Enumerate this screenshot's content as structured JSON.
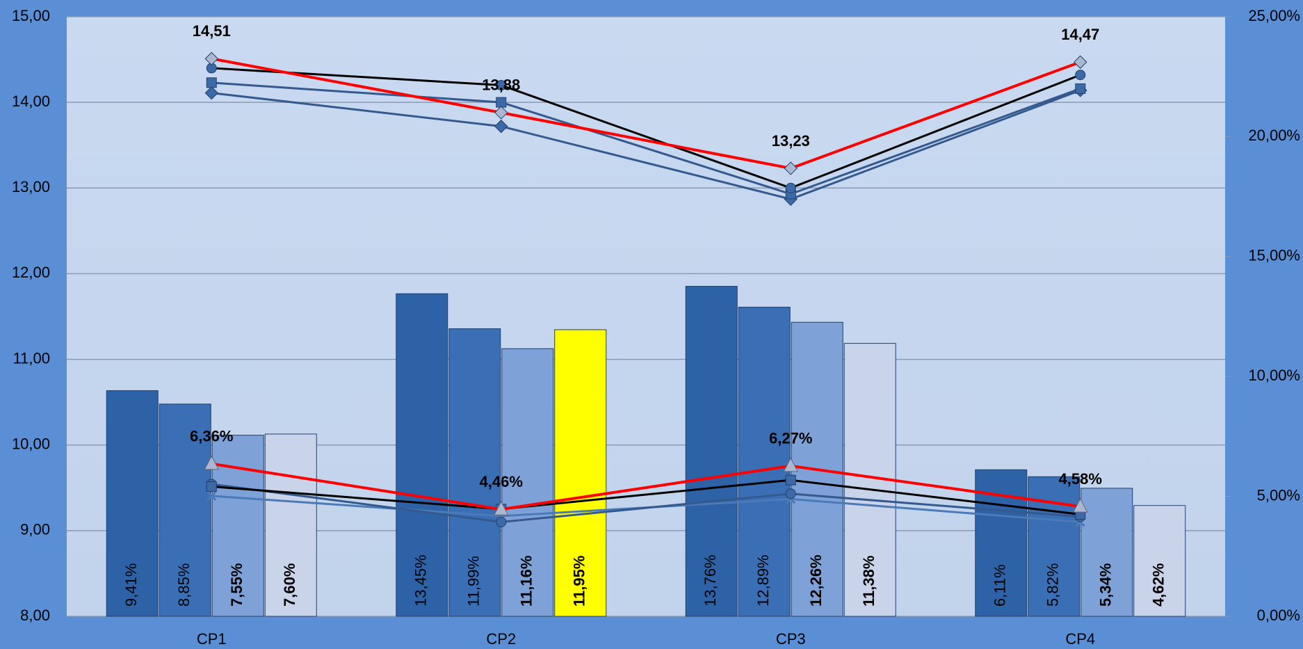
{
  "chart_data": {
    "type": "combo",
    "categories": [
      "CP1",
      "CP2",
      "CP3",
      "CP4"
    ],
    "ylim": [
      8,
      15
    ],
    "yticks": [
      {
        "value": 8,
        "label": "8,00"
      },
      {
        "value": 9,
        "label": "9,00"
      },
      {
        "value": 10,
        "label": "10,00"
      },
      {
        "value": 11,
        "label": "11,00"
      },
      {
        "value": 12,
        "label": "12,00"
      },
      {
        "value": 13,
        "label": "13,00"
      },
      {
        "value": 14,
        "label": "14,00"
      },
      {
        "value": 15,
        "label": "15,00"
      }
    ],
    "y2lim": [
      0,
      25
    ],
    "y2ticks": [
      {
        "value": 0,
        "label": "0,00%"
      },
      {
        "value": 5,
        "label": "5,00%"
      },
      {
        "value": 10,
        "label": "10,00%"
      },
      {
        "value": 15,
        "label": "15,00%"
      },
      {
        "value": 20,
        "label": "20,00%"
      },
      {
        "value": 25,
        "label": "25,00%"
      }
    ],
    "grid": true,
    "series": [
      {
        "kind": "bar",
        "axis": "y2",
        "color": "#2d62a6",
        "label_color": "#ffffff",
        "values": [
          9.41,
          13.45,
          13.76,
          6.11
        ],
        "value_labels": [
          "9,41%",
          "13,45%",
          "13,76%",
          "6,11%"
        ]
      },
      {
        "kind": "bar",
        "axis": "y2",
        "color": "#3a6fb6",
        "label_color": "#ffffff",
        "values": [
          8.85,
          11.99,
          12.89,
          5.82
        ],
        "value_labels": [
          "8,85%",
          "11,99%",
          "12,89%",
          "5,82%"
        ]
      },
      {
        "kind": "bar",
        "axis": "y2",
        "color": "#7ea2d8",
        "label_color": "#000000",
        "values": [
          7.55,
          11.16,
          12.26,
          5.34
        ],
        "value_labels": [
          "7,55%",
          "11,16%",
          "12,26%",
          "5,34%"
        ]
      },
      {
        "kind": "bar",
        "axis": "y2",
        "color": "#c9d3ea",
        "colors": [
          "#c9d3ea",
          "#ffff00",
          "#c9d3ea",
          "#c9d3ea"
        ],
        "label_color": "#0000ff",
        "values": [
          7.6,
          11.95,
          11.38,
          4.62
        ],
        "value_labels": [
          "7,60%",
          "11,95%",
          "11,38%",
          "4,62%"
        ]
      },
      {
        "kind": "line",
        "axis": "y",
        "color": "#34598e",
        "marker": "diamond",
        "values": [
          14.11,
          13.72,
          12.87,
          14.14
        ]
      },
      {
        "kind": "line",
        "axis": "y",
        "color": "#34598e",
        "marker": "square",
        "values": [
          14.23,
          14.0,
          12.93,
          14.16
        ]
      },
      {
        "kind": "line",
        "axis": "y",
        "color": "#000000",
        "marker": "circle",
        "values": [
          14.4,
          14.2,
          13.0,
          14.32
        ]
      },
      {
        "kind": "line",
        "axis": "y",
        "color": "#ff0000",
        "marker": "diamond",
        "label_color": "#ff0000",
        "values": [
          14.51,
          13.88,
          13.23,
          14.47
        ],
        "value_labels": [
          "14,51",
          "13,88",
          "13,23",
          "14,47"
        ]
      },
      {
        "kind": "line",
        "axis": "y2",
        "color": "#4a7ab8",
        "marker": "cross",
        "values": [
          5.02,
          4.18,
          4.89,
          3.93
        ]
      },
      {
        "kind": "line",
        "axis": "y2",
        "color": "#34598e",
        "marker": "circle",
        "values": [
          5.51,
          3.93,
          5.11,
          4.15
        ]
      },
      {
        "kind": "line",
        "axis": "y2",
        "color": "#000000",
        "marker": "square",
        "values": [
          5.41,
          4.47,
          5.68,
          4.25
        ]
      },
      {
        "kind": "line",
        "axis": "y2",
        "color": "#ff0000",
        "marker": "triangle",
        "label_color": "#000000",
        "values": [
          6.36,
          4.46,
          6.27,
          4.58
        ],
        "value_labels": [
          "6,36%",
          "4,46%",
          "6,27%",
          "4,58%"
        ]
      }
    ]
  }
}
